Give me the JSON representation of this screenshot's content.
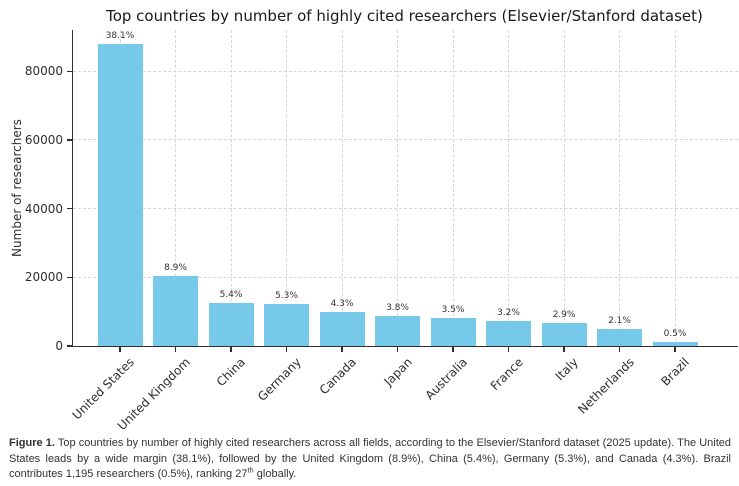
{
  "title": "Top countries by number of highly cited researchers (Elsevier/Stanford dataset)",
  "chart_data": {
    "type": "bar",
    "title": "Top countries by number of highly cited researchers (Elsevier/Stanford dataset)",
    "categories": [
      "United States",
      "United Kingdom",
      "China",
      "Germany",
      "Canada",
      "Japan",
      "Australia",
      "France",
      "Italy",
      "Netherlands",
      "Brazil"
    ],
    "values": [
      88000,
      20500,
      12500,
      12200,
      9900,
      8800,
      8100,
      7400,
      6700,
      4900,
      1195
    ],
    "percent_labels": [
      "38.1%",
      "8.9%",
      "5.4%",
      "5.3%",
      "4.3%",
      "3.8%",
      "3.5%",
      "3.2%",
      "2.9%",
      "2.1%",
      "0.5%"
    ],
    "xlabel": "",
    "ylabel": "Number of researchers",
    "yticks": [
      0,
      20000,
      40000,
      60000,
      80000
    ],
    "ylim": [
      0,
      92000
    ],
    "grid": "dashed, both axes",
    "legend": "none",
    "bar_color": "#76c9e8"
  },
  "colors": {
    "bar": "#76c9e8",
    "axis": "#2f2f2f",
    "grid": "#d6d6d6",
    "title_text": "#1a1a1a",
    "tick_text": "#2e2e2e",
    "caption_text": "#333333",
    "background": "#ffffff"
  },
  "caption": {
    "label": "Figure 1.",
    "text_before_sup": "Top countries by number of highly cited researchers across all fields, according to the Elsevier/Stanford dataset (2025 update). The United States leads by a wide margin (38.1%), followed by the United Kingdom (8.9%), China (5.4%), Germany (5.3%), and Canada (4.3%). Brazil contributes 1,195 researchers (0.5%), ranking 27",
    "sup": "th",
    "text_after_sup": " globally."
  }
}
